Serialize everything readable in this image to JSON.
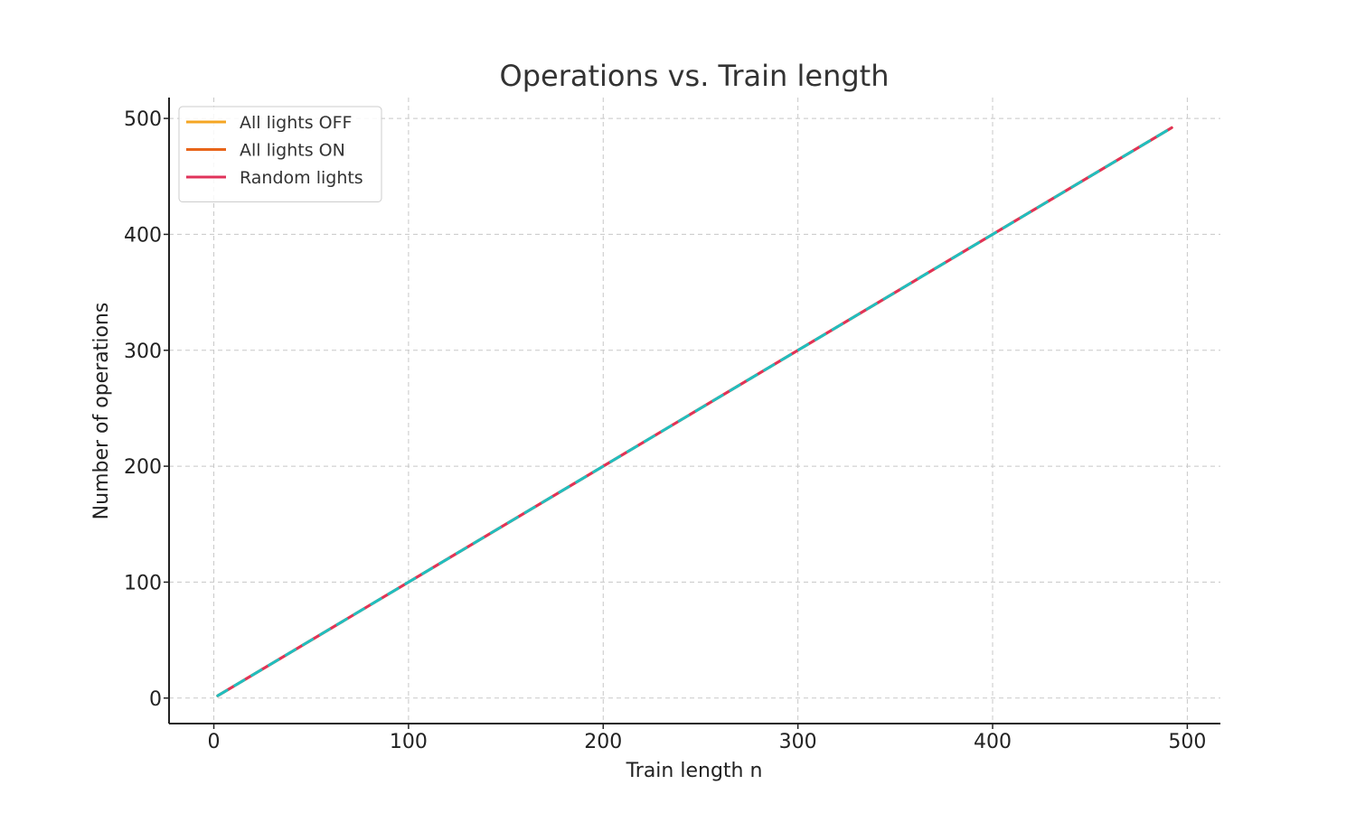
{
  "chart_data": {
    "type": "line",
    "title": "Operations vs. Train length",
    "xlabel": "Train length n",
    "ylabel": "Number of operations",
    "xlim": [
      -23,
      517
    ],
    "ylim": [
      -22,
      518
    ],
    "xticks": [
      0,
      100,
      200,
      300,
      400,
      500
    ],
    "yticks": [
      0,
      100,
      200,
      300,
      400,
      500
    ],
    "grid": true,
    "legend_position": "top-left",
    "series": [
      {
        "name": "All lights OFF",
        "color": "#f5a623",
        "style": "solid",
        "x": [
          2,
          492
        ],
        "y": [
          2,
          492
        ]
      },
      {
        "name": "All lights ON",
        "color": "#e8651a",
        "style": "solid",
        "x": [
          2,
          492
        ],
        "y": [
          2,
          492
        ]
      },
      {
        "name": "Random lights",
        "color": "#e0325a",
        "style": "solid",
        "x": [
          2,
          492
        ],
        "y": [
          2,
          492
        ]
      },
      {
        "color": "#1fbfbf",
        "style": "dashed",
        "x": [
          2,
          492
        ],
        "y": [
          2,
          492
        ]
      }
    ]
  }
}
